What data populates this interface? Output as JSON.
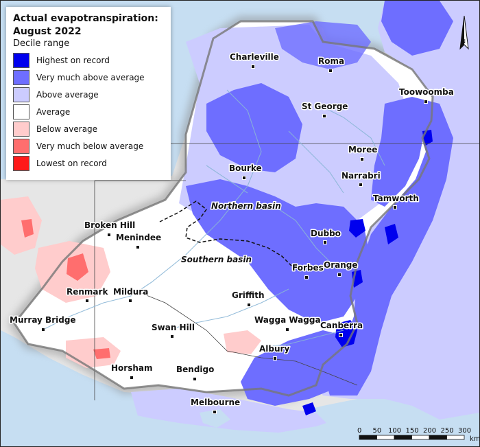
{
  "legend": {
    "title": "Actual evapotranspiration: August 2022",
    "subtitle": "Decile range",
    "items": [
      {
        "label": "Highest on record",
        "color": "#0000ee"
      },
      {
        "label": "Very much above average",
        "color": "#6e6eff"
      },
      {
        "label": "Above average",
        "color": "#ccccff"
      },
      {
        "label": "Average",
        "color": "#ffffff"
      },
      {
        "label": "Below average",
        "color": "#ffcccc"
      },
      {
        "label": "Very much below average",
        "color": "#ff6e6e"
      },
      {
        "label": "Lowest on record",
        "color": "#ff1a1a"
      }
    ]
  },
  "towns": [
    {
      "name": "Charleville"
    },
    {
      "name": "Roma"
    },
    {
      "name": "Toowoomba"
    },
    {
      "name": "St George"
    },
    {
      "name": "Moree"
    },
    {
      "name": "Bourke"
    },
    {
      "name": "Narrabri"
    },
    {
      "name": "Tamworth"
    },
    {
      "name": "Broken Hill"
    },
    {
      "name": "Menindee"
    },
    {
      "name": "Dubbo"
    },
    {
      "name": "Orange"
    },
    {
      "name": "Forbes"
    },
    {
      "name": "Renmark"
    },
    {
      "name": "Mildura"
    },
    {
      "name": "Griffith"
    },
    {
      "name": "Murray Bridge"
    },
    {
      "name": "Swan Hill"
    },
    {
      "name": "Wagga Wagga"
    },
    {
      "name": "Canberra"
    },
    {
      "name": "Albury"
    },
    {
      "name": "Horsham"
    },
    {
      "name": "Bendigo"
    },
    {
      "name": "Melbourne"
    }
  ],
  "basins": {
    "northern": "Northern basin",
    "southern": "Southern basin"
  },
  "north_arrow": "N",
  "scale_bar": {
    "ticks": [
      "0",
      "50",
      "100",
      "150",
      "200",
      "250",
      "300"
    ],
    "unit": "km"
  }
}
